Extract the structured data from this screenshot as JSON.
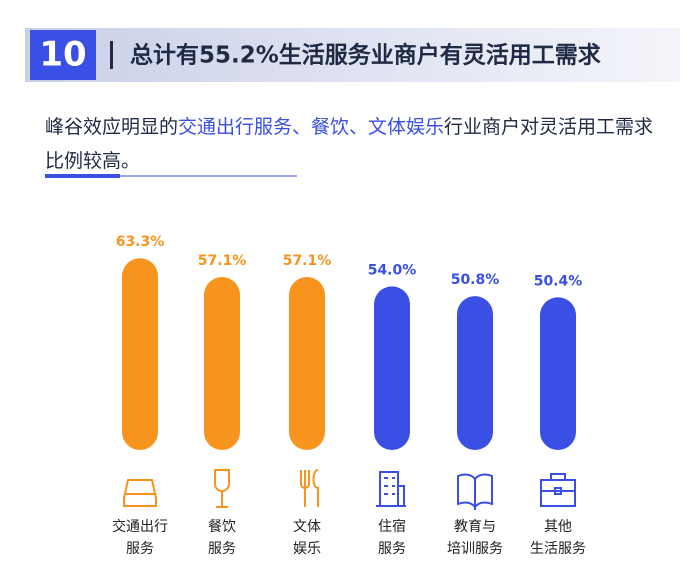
{
  "badge": "10",
  "chart_data": {
    "type": "bar",
    "title": "总计有55.2%生活服务业商户有灵活用工需求",
    "subtitle": [
      "峰谷效应明显的",
      "交通出行服务、餐饮、文体娱乐",
      "行业商户对灵活用工需求比例较高。"
    ],
    "categories": [
      "交通出行\n服务",
      "餐饮\n服务",
      "文体\n娱乐",
      "住宿\n服务",
      "教育与\n培训服务",
      "其他\n生活服务"
    ],
    "values": [
      63.3,
      57.1,
      57.1,
      54.0,
      50.8,
      50.4
    ],
    "value_labels": [
      "63.3%",
      "57.1%",
      "57.1%",
      "54.0%",
      "50.8%",
      "50.4%"
    ],
    "colors": [
      "#f7941d",
      "#f7941d",
      "#f7941d",
      "#3a4fe3",
      "#3a4fe3",
      "#3a4fe3"
    ]
  }
}
